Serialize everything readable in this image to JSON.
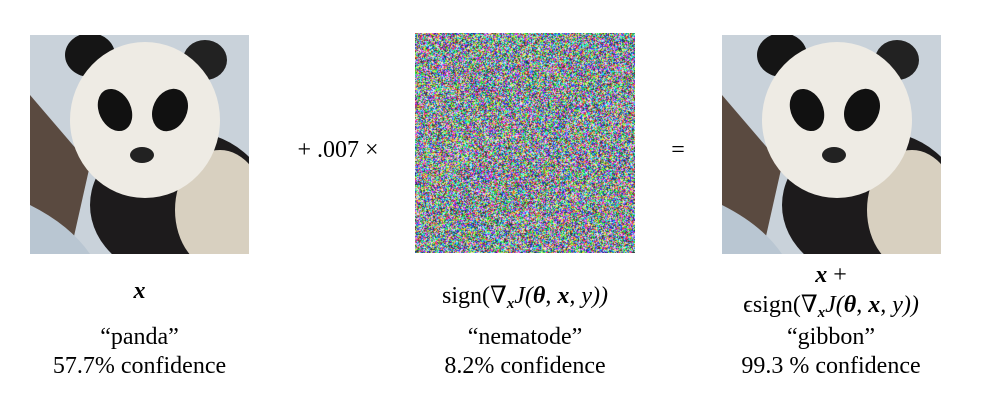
{
  "panels": [
    {
      "var": "x",
      "label": "“panda”",
      "confidence": "57.7% confidence"
    },
    {
      "math": {
        "pre": "sign(∇",
        "sub": "x",
        "mid": "J(",
        "theta": "θ",
        "comma1": ", ",
        "x": "x",
        "end": ", y))"
      },
      "label": "“nematode”",
      "confidence": "8.2% confidence"
    },
    {
      "line1": {
        "x": "x",
        "plus": " +"
      },
      "math": {
        "pre": "ϵsign(∇",
        "sub": "x",
        "mid": "J(",
        "theta": "θ",
        "comma1": ", ",
        "x": "x",
        "end": ", y))"
      },
      "label": "“gibbon”",
      "confidence": "99.3 % confidence"
    }
  ],
  "operators": {
    "multiply": "+ .007 ×",
    "equals": "="
  }
}
